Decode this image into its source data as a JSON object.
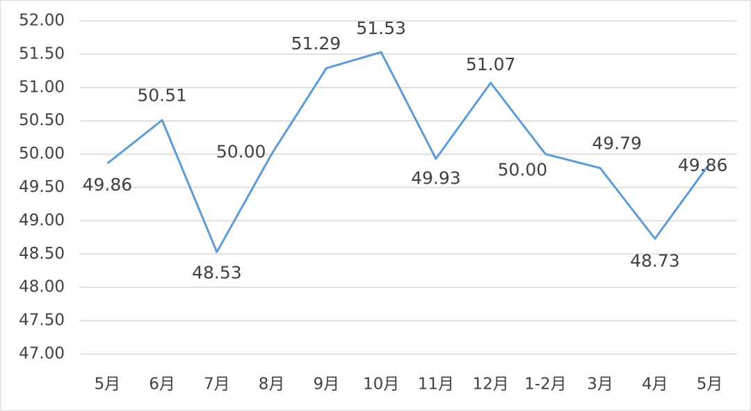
{
  "chart_data": {
    "type": "line",
    "categories": [
      "5月",
      "6月",
      "7月",
      "8月",
      "9月",
      "10月",
      "11月",
      "12月",
      "1-2月",
      "3月",
      "4月",
      "5月"
    ],
    "values": [
      49.86,
      50.51,
      48.53,
      50.0,
      51.29,
      51.53,
      49.93,
      51.07,
      50.0,
      49.79,
      48.73,
      49.86
    ],
    "value_labels": [
      "49.86",
      "50.51",
      "48.53",
      "50.00",
      "51.29",
      "51.53",
      "49.93",
      "51.07",
      "50.00",
      "49.79",
      "48.73",
      "49.86"
    ],
    "color": "#5b9bd5",
    "ylim": [
      47,
      52
    ],
    "yticks": [
      {
        "value": 47,
        "label": "47.00"
      },
      {
        "value": 47.5,
        "label": "47.50"
      },
      {
        "value": 48,
        "label": "48.00"
      },
      {
        "value": 48.5,
        "label": "48.50"
      },
      {
        "value": 49,
        "label": "49.00"
      },
      {
        "value": 49.5,
        "label": "49.50"
      },
      {
        "value": 50,
        "label": "50.00"
      },
      {
        "value": 50.5,
        "label": "50.50"
      },
      {
        "value": 51,
        "label": "51.00"
      },
      {
        "value": 51.5,
        "label": "51.50"
      },
      {
        "value": 52,
        "label": "52.00"
      }
    ],
    "grid": true
  }
}
